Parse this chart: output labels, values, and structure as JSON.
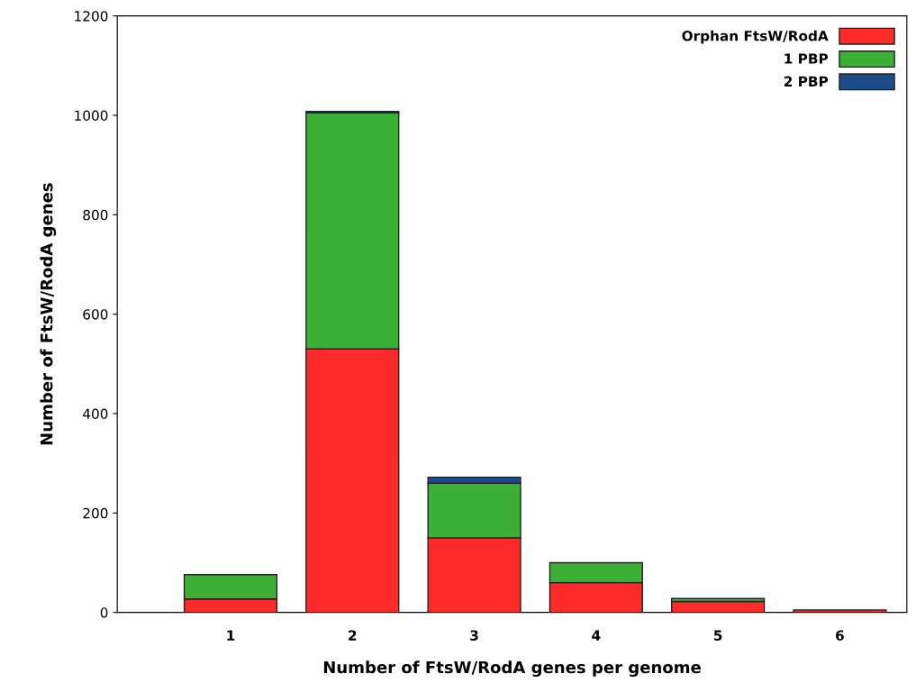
{
  "chart_data": {
    "type": "bar",
    "stacked": true,
    "xlabel": "Number of FtsW/RodA genes per genome",
    "ylabel": "Number of FtsW/RodA genes",
    "categories": [
      "1",
      "2",
      "3",
      "4",
      "5",
      "6"
    ],
    "series": [
      {
        "name": "Orphan FtsW/RodA",
        "color": "#ff2a2a",
        "values": [
          27,
          530,
          150,
          60,
          22,
          5
        ]
      },
      {
        "name": "1 PBP",
        "color": "#3cb034",
        "values": [
          49,
          475,
          110,
          40,
          6,
          0
        ]
      },
      {
        "name": "2 PBP",
        "color": "#1a4c8c",
        "values": [
          0,
          3,
          12,
          0,
          0,
          0
        ]
      }
    ],
    "ylim": [
      0,
      1200
    ],
    "yticks": [
      0,
      200,
      400,
      600,
      800,
      1000,
      1200
    ],
    "grid": false,
    "legend": "top right"
  }
}
